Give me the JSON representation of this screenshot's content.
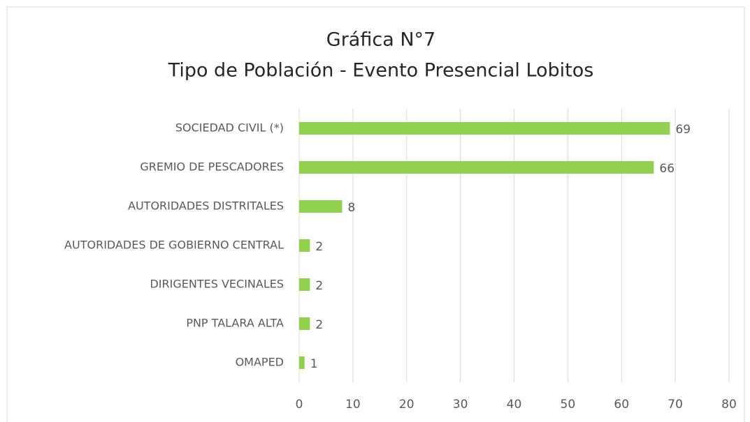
{
  "chart_data": {
    "type": "hbar",
    "title": "Gráfica N°7",
    "subtitle": "Tipo de Población - Evento Presencial Lobitos",
    "categories": [
      "SOCIEDAD CIVIL (*)",
      "GREMIO DE PESCADORES",
      "AUTORIDADES DISTRITALES",
      "AUTORIDADES DE GOBIERNO CENTRAL",
      "DIRIGENTES VECINALES",
      "PNP TALARA ALTA",
      "OMAPED"
    ],
    "values": [
      69,
      66,
      8,
      2,
      2,
      2,
      1
    ],
    "color": "#92d050",
    "xlim": [
      0,
      80
    ],
    "xticks": [
      0,
      10,
      20,
      30,
      40,
      50,
      60,
      70,
      80
    ],
    "grid": true
  }
}
